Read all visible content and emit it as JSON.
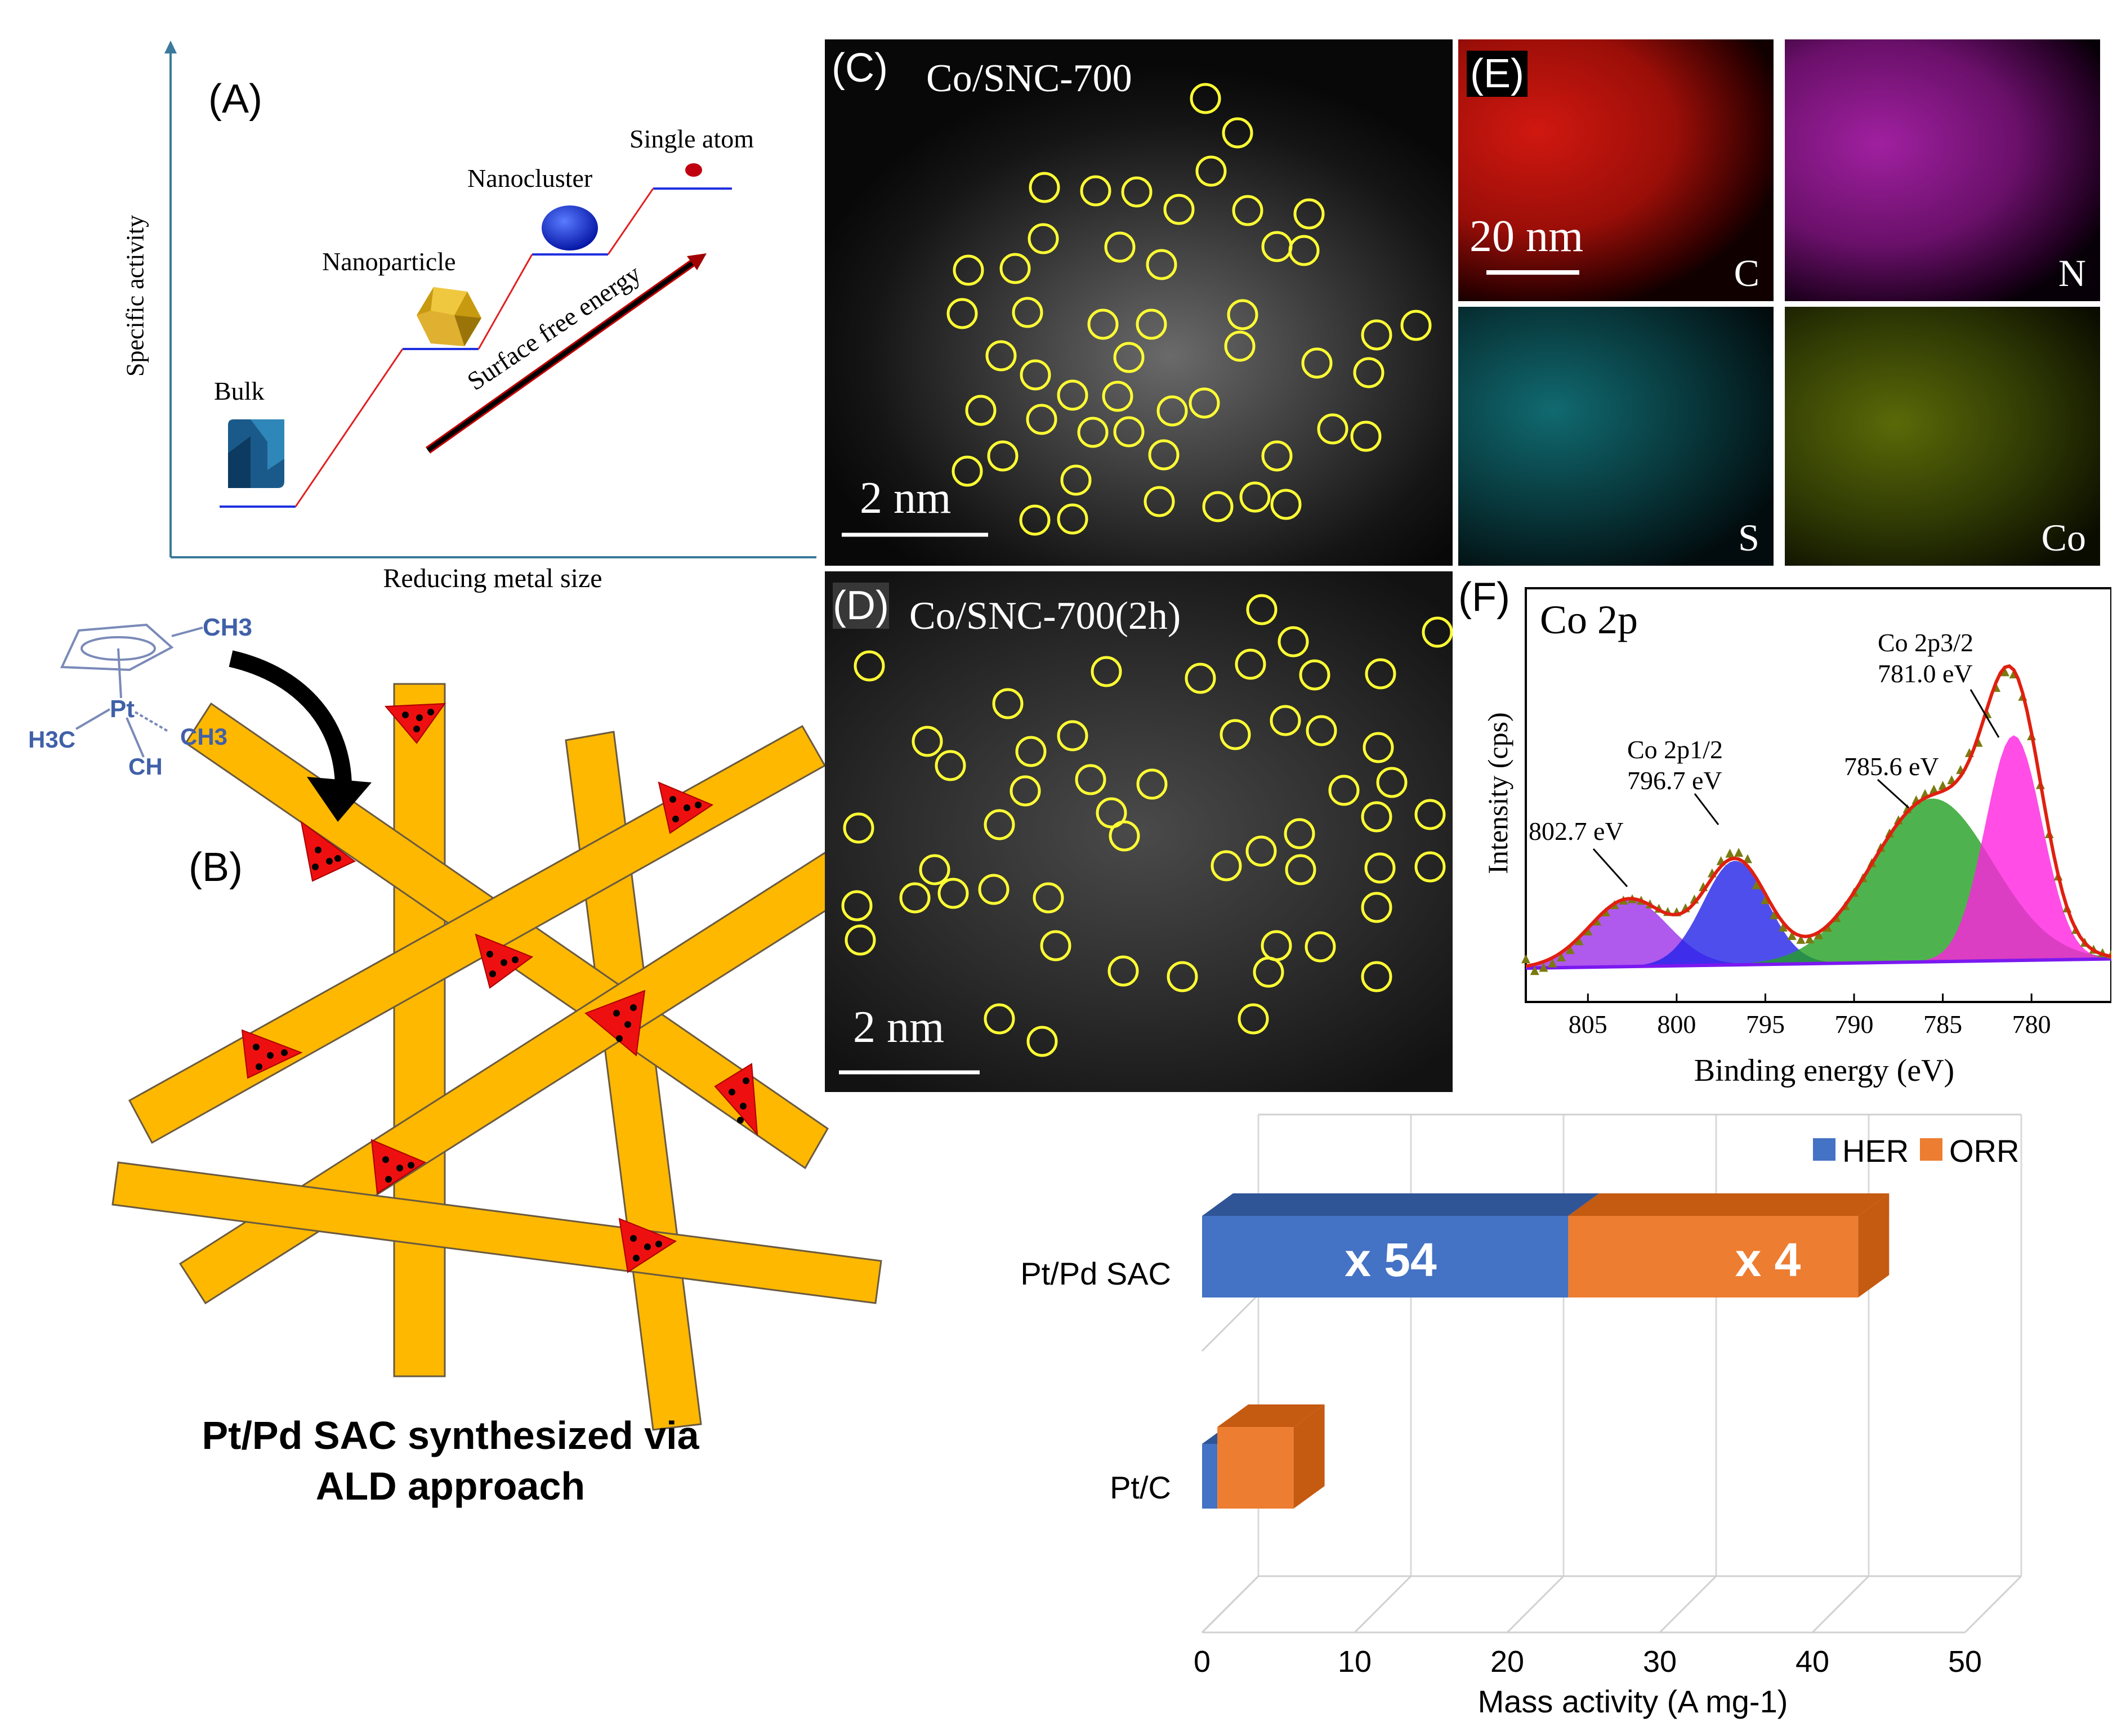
{
  "panelA": {
    "tag": "(A)",
    "y_axis_label": "Specific activity",
    "x_axis_label": "Reducing metal size",
    "steps": [
      "Bulk",
      "Nanoparticle",
      "Nanocluster",
      "Single atom"
    ],
    "arrow_label": "Surface free energy"
  },
  "panelB": {
    "tag": "(B)",
    "molecule": {
      "ch3_top": "CH3",
      "pt": "Pt",
      "h3c": "H3C",
      "ch3_right": "CH3",
      "ch_bottom": "CH"
    },
    "caption_line1": "Pt/Pd SAC synthesized via",
    "caption_line2": "ALD approach"
  },
  "panelC": {
    "tag": "(C)",
    "title": "Co/SNC-700",
    "scale": "2 nm"
  },
  "panelD": {
    "tag": "(D)",
    "title": "Co/SNC-700(2h)",
    "scale": "2 nm"
  },
  "panelE": {
    "tag": "(E)",
    "scale": "20 nm",
    "maps": [
      {
        "element": "C",
        "color": "#d01810"
      },
      {
        "element": "N",
        "color": "#c018c0"
      },
      {
        "element": "S",
        "color": "#10a0a8"
      },
      {
        "element": "Co",
        "color": "#a8c010"
      }
    ]
  },
  "panelF": {
    "tag": "(F)",
    "title": "Co 2p",
    "y_axis_label": "Intensity (cps)",
    "x_axis_label": "Binding energy (eV)",
    "chart_data": {
      "type": "line",
      "title": "Co 2p",
      "xlabel": "Binding energy (eV)",
      "ylabel": "Intensity (cps)",
      "xlim": [
        808.5,
        775.5
      ],
      "x_ticks": [
        805,
        800,
        795,
        790,
        785,
        780
      ],
      "peaks": [
        {
          "name": "802.7 eV",
          "center": 802.7,
          "color": "#9b30e8"
        },
        {
          "name": "Co 2p1/2 796.7 eV",
          "center": 796.7,
          "color": "#2222e8"
        },
        {
          "name": "785.6 eV",
          "center": 785.6,
          "color": "#22a022"
        },
        {
          "name": "Co 2p3/2 781.0 eV",
          "center": 781.0,
          "color": "#ff20e0"
        }
      ],
      "annotations": [
        "802.7 eV",
        "Co 2p1/2",
        "796.7 eV",
        "785.6 eV",
        "Co 2p3/2",
        "781.0 eV"
      ]
    }
  },
  "panelG": {
    "chart_data": {
      "type": "bar",
      "orientation": "horizontal",
      "stacked": true,
      "categories": [
        "Pt/Pd SAC",
        "Pt/C"
      ],
      "series": [
        {
          "name": "HER",
          "color": "#4472c4",
          "values": [
            24,
            1
          ]
        },
        {
          "name": "ORR",
          "color": "#ed7d31",
          "values": [
            19,
            5
          ]
        }
      ],
      "data_labels": [
        "x 54",
        "x 4"
      ],
      "xlabel": "Mass activity (A mg-1)",
      "xlim": [
        0,
        50
      ],
      "x_ticks": [
        0,
        10,
        20,
        30,
        40,
        50
      ],
      "legend": "top-right"
    }
  }
}
